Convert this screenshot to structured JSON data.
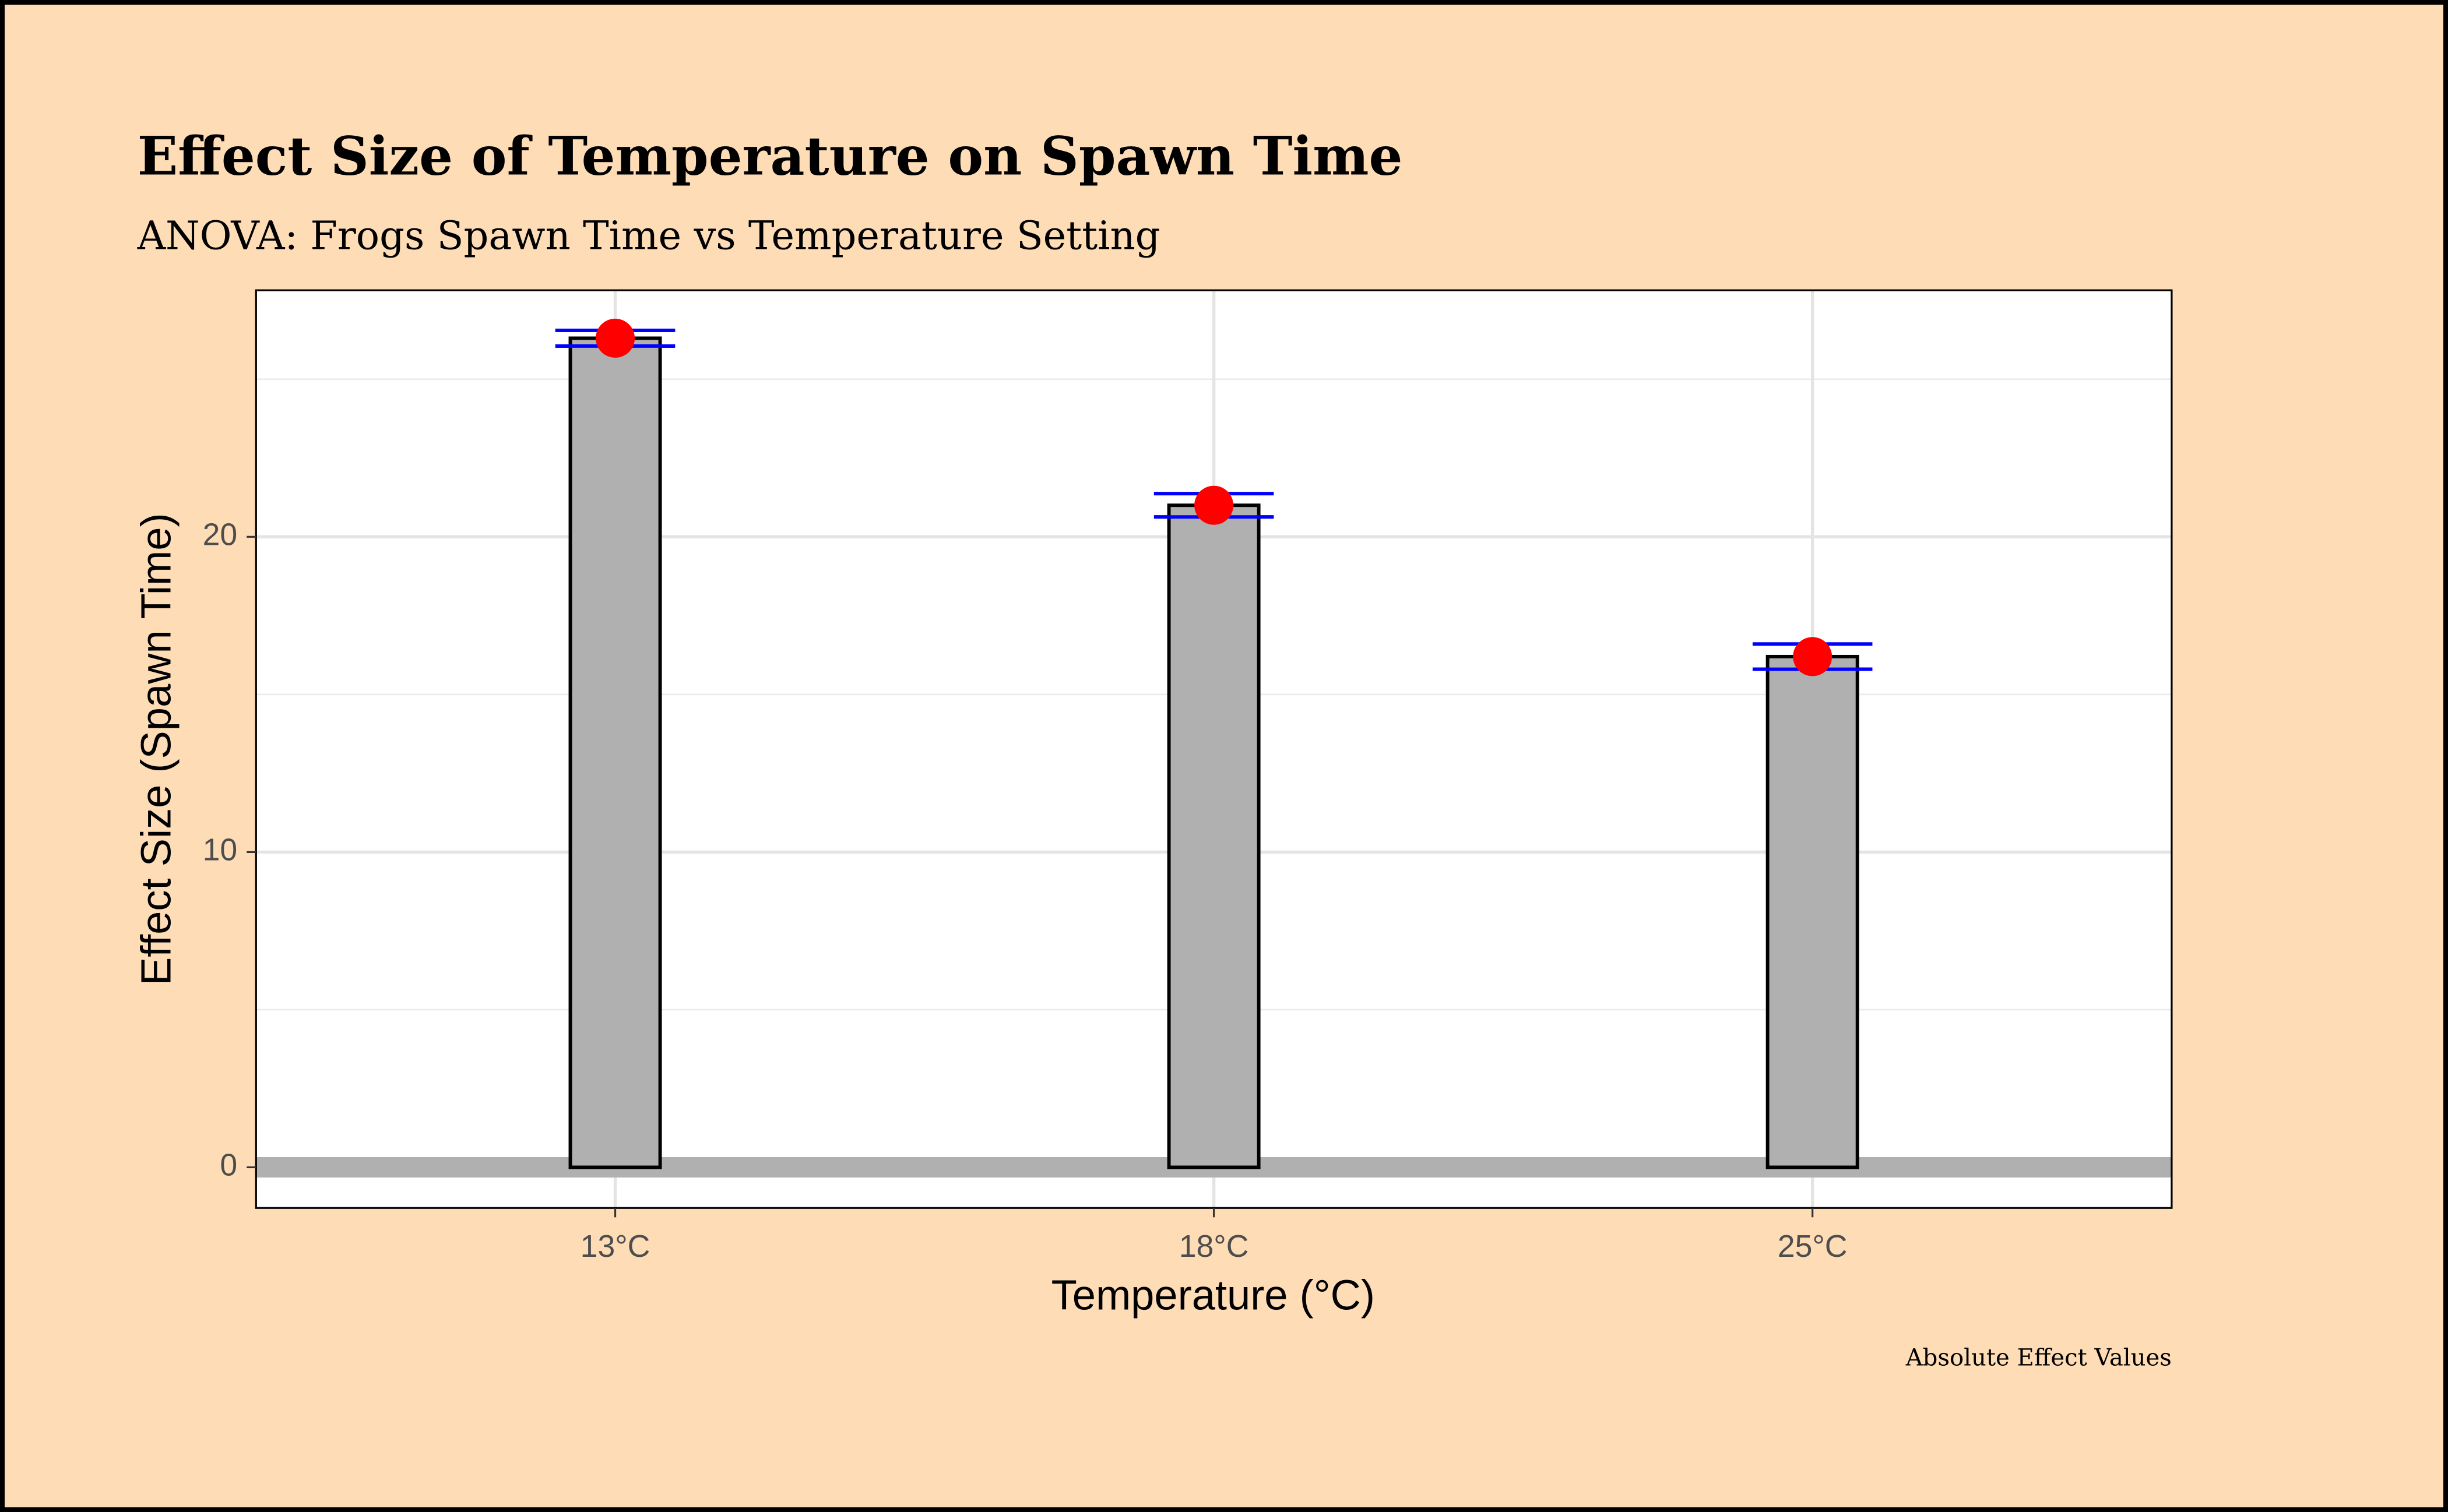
{
  "chart_data": {
    "type": "bar",
    "title": "Effect Size of Temperature on Spawn Time",
    "subtitle": "ANOVA: Frogs Spawn Time vs Temperature Setting",
    "x_label": "Temperature (°C)",
    "y_label": "Effect Size (Spawn Time)",
    "caption": "Absolute Effect Values",
    "categories": [
      "13°C",
      "18°C",
      "25°C"
    ],
    "values": [
      26.3,
      21.0,
      16.2
    ],
    "errors": [
      0.25,
      0.37,
      0.4
    ],
    "color": "#b0b0b0",
    "point_color": "#ff0000",
    "error_color": "#0000ff",
    "reference_line": {
      "value": 0,
      "color": "#b0b0b0"
    },
    "ylim": [
      -1.29,
      27.82
    ],
    "yticks": [
      0,
      10,
      20
    ],
    "y_minor_ticks": [
      5,
      15,
      25
    ],
    "grid": true
  }
}
